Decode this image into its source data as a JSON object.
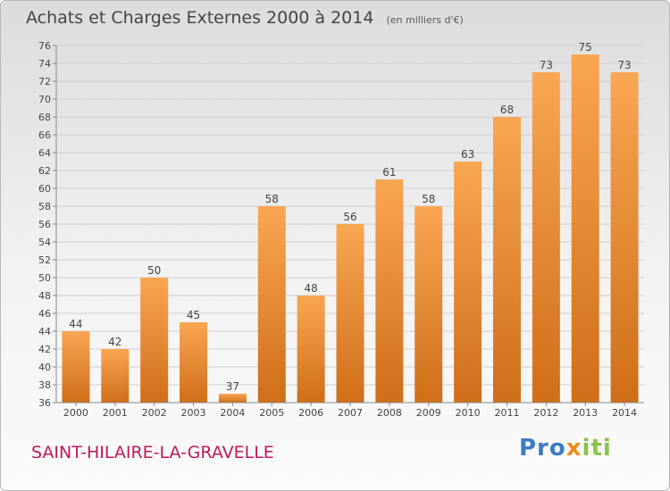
{
  "header": {
    "title": "Achats et Charges Externes 2000 à 2014",
    "subtitle": "(en milliers d'€)"
  },
  "footer": {
    "commune": "SAINT-HILAIRE-LA-GRAVELLE",
    "logo_part1": "Pro",
    "logo_part2": "x",
    "logo_part3": "iti"
  },
  "colors": {
    "bar_top": "#f9a653",
    "bar_bottom": "#cf6e18",
    "commune": "#c2185b"
  },
  "chart_data": {
    "type": "bar",
    "categories": [
      "2000",
      "2001",
      "2002",
      "2003",
      "2004",
      "2005",
      "2006",
      "2007",
      "2008",
      "2009",
      "2010",
      "2011",
      "2012",
      "2013",
      "2014"
    ],
    "values": [
      44,
      42,
      50,
      45,
      37,
      58,
      48,
      56,
      61,
      58,
      63,
      68,
      73,
      75,
      73
    ],
    "title": "Achats et Charges Externes 2000 à 2014",
    "ylim": [
      36,
      76
    ],
    "yticks": [
      36,
      38,
      40,
      42,
      44,
      46,
      48,
      50,
      52,
      54,
      56,
      58,
      60,
      62,
      64,
      66,
      68,
      70,
      72,
      74,
      76
    ],
    "grid": true
  }
}
